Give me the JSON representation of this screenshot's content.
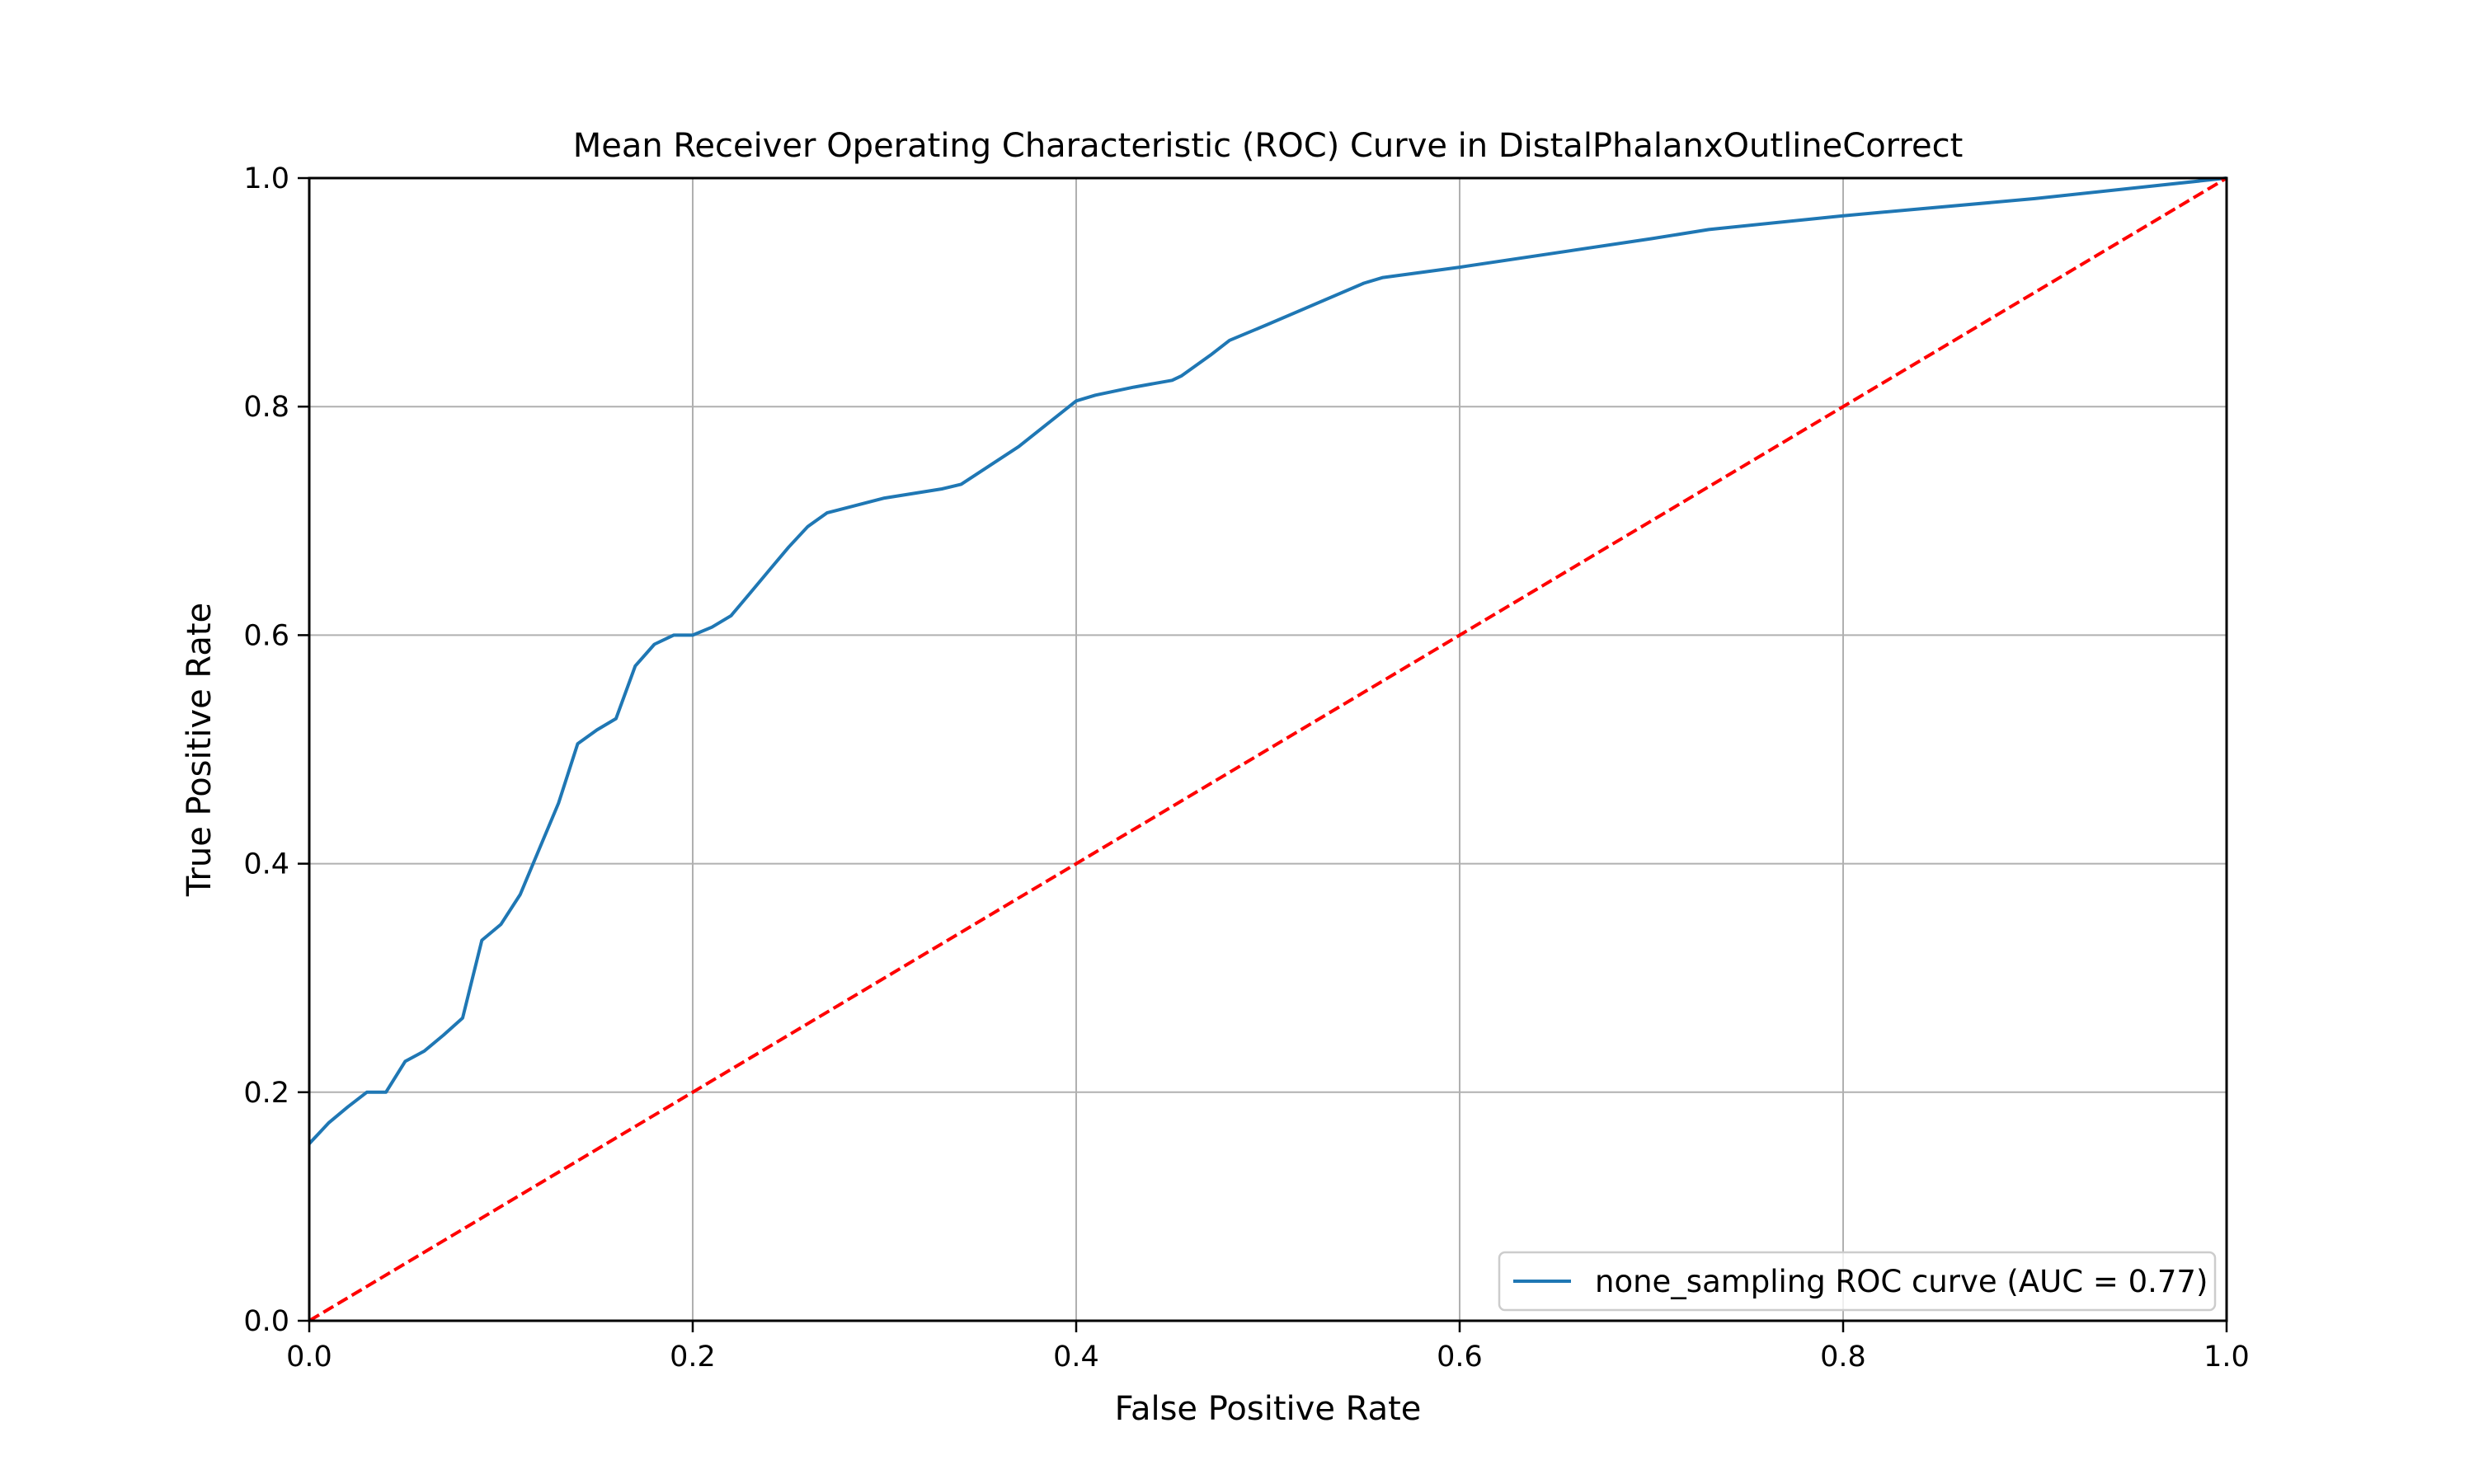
{
  "chart_data": {
    "type": "line",
    "title": "Mean Receiver Operating Characteristic (ROC) Curve in DistalPhalanxOutlineCorrect",
    "xlabel": "False Positive Rate",
    "ylabel": "True Positive Rate",
    "xlim": [
      0.0,
      1.0
    ],
    "ylim": [
      0.0,
      1.0
    ],
    "xticks": [
      "0.0",
      "0.2",
      "0.4",
      "0.6",
      "0.8",
      "1.0"
    ],
    "yticks": [
      "0.0",
      "0.2",
      "0.4",
      "0.6",
      "0.8",
      "1.0"
    ],
    "grid": true,
    "legend_position": "lower-right",
    "series": [
      {
        "name": "none_sampling ROC curve (AUC = 0.77)",
        "color": "#1f77b4",
        "style": "solid",
        "x": [
          0.0,
          0.01,
          0.02,
          0.03,
          0.04,
          0.05,
          0.06,
          0.07,
          0.08,
          0.09,
          0.1,
          0.11,
          0.12,
          0.13,
          0.14,
          0.15,
          0.16,
          0.17,
          0.18,
          0.19,
          0.2,
          0.21,
          0.22,
          0.23,
          0.24,
          0.25,
          0.26,
          0.27,
          0.3,
          0.33,
          0.34,
          0.37,
          0.4,
          0.41,
          0.43,
          0.45,
          0.455,
          0.47,
          0.48,
          0.5,
          0.55,
          0.56,
          0.6,
          0.7,
          0.73,
          0.8,
          0.9,
          1.0
        ],
        "y": [
          0.155,
          0.173,
          0.187,
          0.2,
          0.2,
          0.227,
          0.236,
          0.25,
          0.265,
          0.333,
          0.347,
          0.373,
          0.413,
          0.453,
          0.505,
          0.517,
          0.527,
          0.573,
          0.592,
          0.6,
          0.6,
          0.607,
          0.617,
          0.637,
          0.657,
          0.677,
          0.695,
          0.707,
          0.72,
          0.728,
          0.732,
          0.765,
          0.805,
          0.81,
          0.817,
          0.823,
          0.827,
          0.845,
          0.858,
          0.872,
          0.908,
          0.913,
          0.922,
          0.947,
          0.955,
          0.967,
          0.982,
          1.0
        ]
      },
      {
        "name": "",
        "color": "#ff0000",
        "style": "dashed",
        "x": [
          0.0,
          1.0
        ],
        "y": [
          0.0,
          1.0
        ]
      }
    ]
  }
}
